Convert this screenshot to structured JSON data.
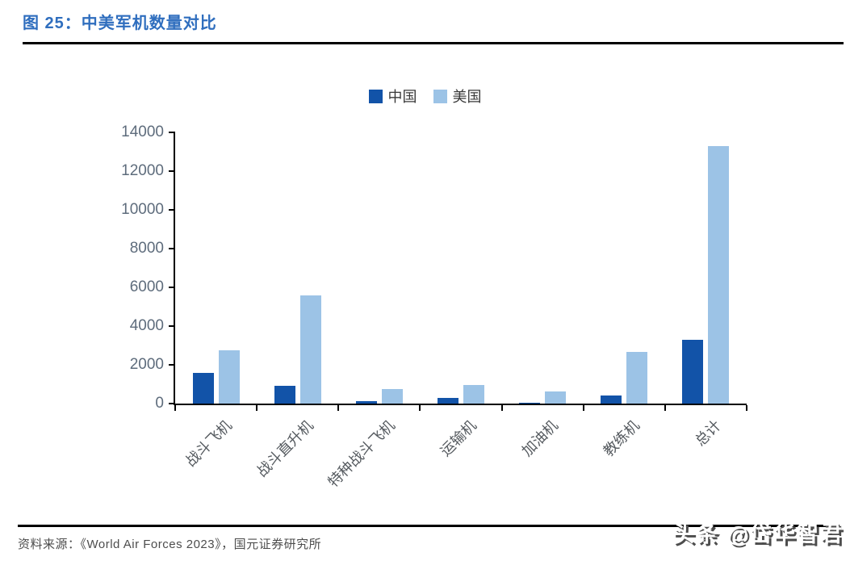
{
  "page": {
    "title": "图 25：中美军机数量对比",
    "source_note": "资料来源：《World Air Forces 2023》，国元证券研究所",
    "watermark": "头条 @岱华智君"
  },
  "colors": {
    "title_blue": "#2F6EBE",
    "china_bar": "#1253A8",
    "us_bar": "#9CC3E6",
    "axis_line": "#000000",
    "axis_label_gray": "#5E6C7C",
    "rule_black": "#000000"
  },
  "chart_data": {
    "type": "bar",
    "title": "中美军机数量对比",
    "categories": [
      "战斗飞机",
      "战斗直升机",
      "特种战斗飞机",
      "运输机",
      "加油机",
      "教练机",
      "总计"
    ],
    "series": [
      {
        "name": "中国",
        "color": "#1253A8",
        "values": [
          1570,
          913,
          114,
          286,
          3,
          398,
          3284
        ]
      },
      {
        "name": "美国",
        "color": "#9CC3E6",
        "values": [
          2757,
          5584,
          745,
          945,
          627,
          2648,
          13300
        ]
      }
    ],
    "xlabel": "",
    "ylabel": "",
    "ylim": [
      0,
      14000
    ],
    "yticks": [
      0,
      2000,
      4000,
      6000,
      8000,
      10000,
      12000,
      14000
    ],
    "legend_position": "top",
    "grid": false
  }
}
